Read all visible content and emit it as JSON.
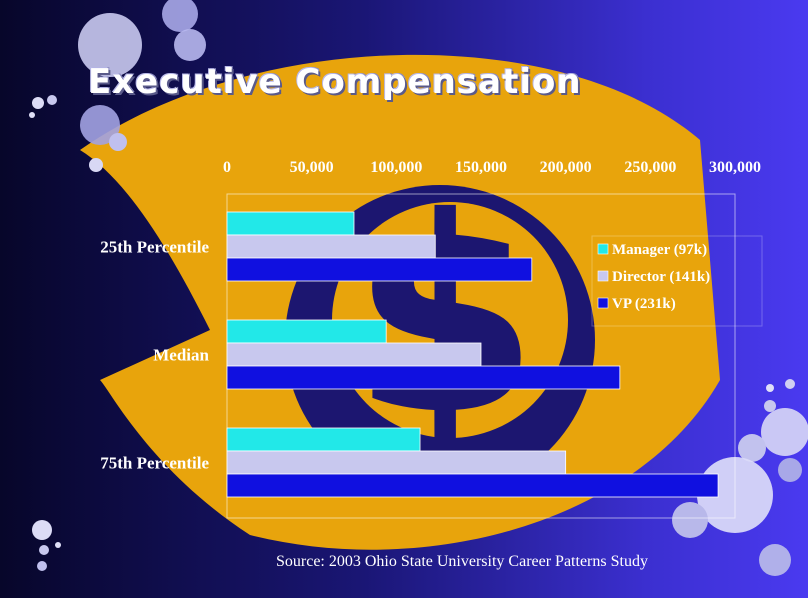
{
  "slide": {
    "title": "Executive Compensation",
    "source": "Source: 2003 Ohio State University Career Patterns Study"
  },
  "colors": {
    "manager": "#22e8e8",
    "director": "#c8c8ee",
    "vp": "#1010e0",
    "gold": "#e8a40c",
    "dollar": "#1c1670"
  },
  "chart_data": {
    "type": "bar",
    "orientation": "horizontal",
    "categories": [
      "25th Percentile",
      "Median",
      "75th Percentile"
    ],
    "series": [
      {
        "name": "Manager (97k)",
        "values": [
          75000,
          94000,
          114000
        ]
      },
      {
        "name": "Director (141k)",
        "values": [
          123000,
          150000,
          200000
        ]
      },
      {
        "name": "VP (231k)",
        "values": [
          180000,
          232000,
          290000
        ]
      }
    ],
    "xlim": [
      0,
      300000
    ],
    "xticks": [
      "0",
      "50,000",
      "100,000",
      "150,000",
      "200,000",
      "250,000",
      "300,000"
    ],
    "tick_values": [
      0,
      50000,
      100000,
      150000,
      200000,
      250000,
      300000
    ],
    "xaxis_position": "top",
    "legend_position": "right",
    "grid": false
  }
}
